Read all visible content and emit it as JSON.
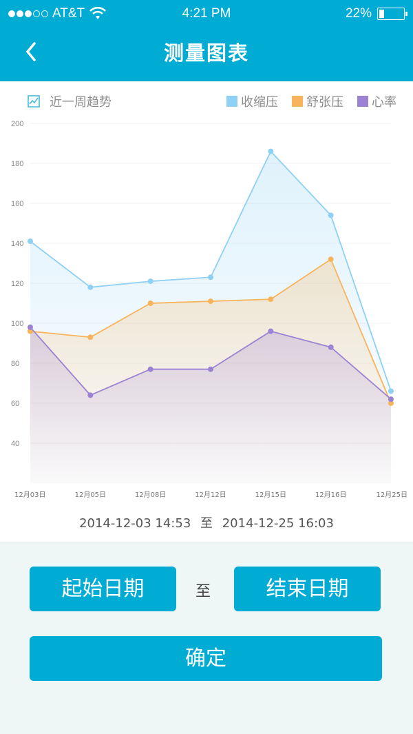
{
  "status_bar": {
    "carrier": "AT&T",
    "time": "4:21  PM",
    "battery": "22%",
    "battery_level": 0.22,
    "signal_strength": 3
  },
  "nav": {
    "title": "测量图表",
    "back_icon": "chevron-left-icon"
  },
  "legend": {
    "trend_label": "近一周趋势",
    "series": [
      {
        "label": "收缩压",
        "color": "#8fd0f5"
      },
      {
        "label": "舒张压",
        "color": "#f8b45c"
      },
      {
        "label": "心率",
        "color": "#9b82d2"
      }
    ]
  },
  "chart_data": {
    "type": "area",
    "categories": [
      "12月03日",
      "12月05日",
      "12月08日",
      "12月12日",
      "12月15日",
      "12月16日",
      "12月25日"
    ],
    "series": [
      {
        "name": "收缩压",
        "values": [
          141,
          118,
          121,
          123,
          186,
          154,
          66
        ],
        "color": "#8fd0f5"
      },
      {
        "name": "舒张压",
        "values": [
          96,
          93,
          110,
          111,
          112,
          132,
          60
        ],
        "color": "#f8b45c"
      },
      {
        "name": "心率",
        "values": [
          98,
          64,
          77,
          77,
          96,
          88,
          62
        ],
        "color": "#9b82d2"
      }
    ],
    "yticks": [
      200,
      180,
      160,
      140,
      120,
      100,
      80,
      60,
      40
    ],
    "ylim": [
      20,
      200
    ],
    "grid": true,
    "legend_position": "top-right"
  },
  "range": {
    "start": "2014-12-03   14:53",
    "to": "至",
    "end": "2014-12-25  16:03"
  },
  "buttons": {
    "start_date": "起始日期",
    "to": "至",
    "end_date": "结束日期",
    "confirm": "确定"
  }
}
